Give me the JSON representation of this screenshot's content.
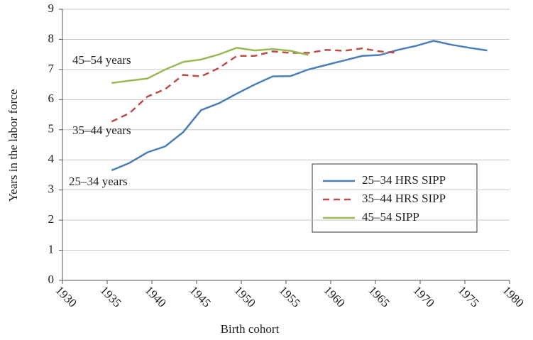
{
  "chart_data": {
    "type": "line",
    "x_label": "Birth cohort",
    "y_label": "Years in the labor force",
    "xlim": [
      1930,
      1980
    ],
    "xticks": [
      1930,
      1935,
      1940,
      1945,
      1950,
      1955,
      1960,
      1965,
      1970,
      1975,
      1980
    ],
    "ylim": [
      0,
      9
    ],
    "yticks": [
      0,
      1,
      2,
      3,
      4,
      5,
      6,
      7,
      8,
      9
    ],
    "grid": true,
    "annotations": [
      "45–54 years",
      "35–44 years",
      "25–34 years"
    ],
    "series": [
      {
        "name": "25–34 HRS SIPP",
        "color": "#4a7ebb",
        "style": "solid",
        "x": [
          1935.5,
          1937.5,
          1939.5,
          1941.5,
          1943.5,
          1945.5,
          1947.5,
          1949.5,
          1951.5,
          1953.5,
          1955.5,
          1957.5,
          1959.5,
          1961.5,
          1963.5,
          1965.5,
          1967.5,
          1969.5,
          1971.5,
          1973.5,
          1975.5,
          1977.5
        ],
        "values": [
          3.65,
          3.9,
          4.25,
          4.45,
          4.92,
          5.65,
          5.88,
          6.2,
          6.5,
          6.77,
          6.78,
          7.0,
          7.15,
          7.3,
          7.45,
          7.48,
          7.65,
          7.78,
          7.95,
          7.82,
          7.72,
          7.63
        ]
      },
      {
        "name": "35–44 HRS SIPP",
        "color": "#be4b48",
        "style": "dashed",
        "x": [
          1935.5,
          1937.5,
          1939.5,
          1941.5,
          1943.5,
          1945.5,
          1947.5,
          1949.5,
          1951.5,
          1953.5,
          1955.5,
          1957.5,
          1959.5,
          1961.5,
          1963.5,
          1965.5,
          1967.5
        ],
        "values": [
          5.27,
          5.55,
          6.1,
          6.35,
          6.82,
          6.77,
          7.05,
          7.45,
          7.45,
          7.6,
          7.55,
          7.55,
          7.65,
          7.62,
          7.7,
          7.6,
          7.55
        ]
      },
      {
        "name": "45–54 SIPP",
        "color": "#98b954",
        "style": "solid",
        "x": [
          1935.5,
          1937.5,
          1939.5,
          1941.5,
          1943.5,
          1945.5,
          1947.5,
          1949.5,
          1951.5,
          1953.5,
          1955.5,
          1957.5
        ],
        "values": [
          6.55,
          6.63,
          6.7,
          7.0,
          7.25,
          7.33,
          7.5,
          7.72,
          7.63,
          7.68,
          7.62,
          7.48
        ]
      }
    ]
  }
}
